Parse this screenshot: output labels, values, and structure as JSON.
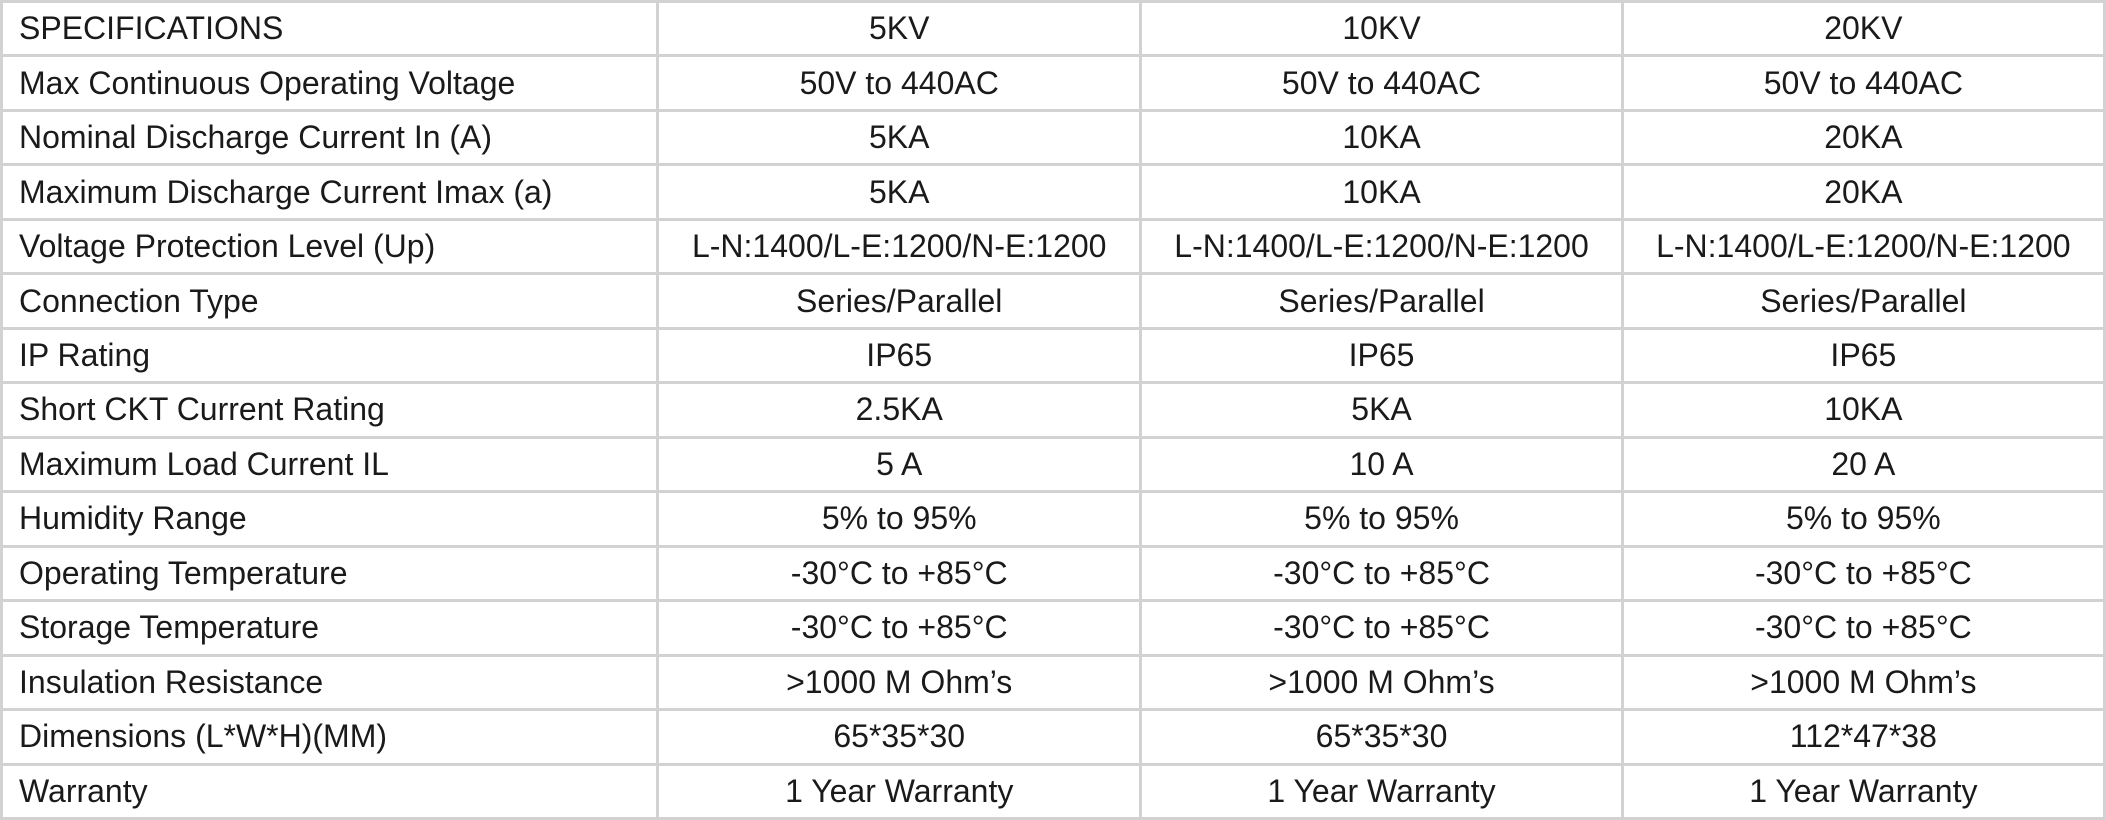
{
  "table": {
    "header": [
      "SPECIFICATIONS",
      "5KV",
      "10KV",
      "20KV"
    ],
    "rows": [
      [
        "Max Continuous Operating Voltage",
        "50V to 440AC",
        "50V to 440AC",
        "50V to 440AC"
      ],
      [
        "Nominal Discharge Current In (A)",
        "5KA",
        "10KA",
        "20KA"
      ],
      [
        "Maximum Discharge Current Imax (a)",
        "5KA",
        "10KA",
        "20KA"
      ],
      [
        "Voltage Protection Level (Up)",
        "L-N:1400/L-E:1200/N-E:1200",
        "L-N:1400/L-E:1200/N-E:1200",
        "L-N:1400/L-E:1200/N-E:1200"
      ],
      [
        "Connection Type",
        "Series/Parallel",
        "Series/Parallel",
        "Series/Parallel"
      ],
      [
        "IP Rating",
        "IP65",
        "IP65",
        "IP65"
      ],
      [
        "Short CKT Current Rating",
        "2.5KA",
        "5KA",
        "10KA"
      ],
      [
        "Maximum Load Current IL",
        "5 A",
        "10 A",
        "20 A"
      ],
      [
        "Humidity Range",
        "5% to 95%",
        "5% to 95%",
        "5% to 95%"
      ],
      [
        "Operating Temperature",
        "-30°C to +85°C",
        "-30°C to +85°C",
        "-30°C to +85°C"
      ],
      [
        "Storage Temperature",
        "-30°C to +85°C",
        "-30°C to +85°C",
        "-30°C to +85°C"
      ],
      [
        "Insulation Resistance",
        ">1000 M Ohm’s",
        ">1000 M Ohm’s",
        ">1000 M Ohm’s"
      ],
      [
        "Dimensions (L*W*H)(MM)",
        "65*35*30",
        "65*35*30",
        "112*47*38"
      ],
      [
        "Warranty",
        "1 Year Warranty",
        "1 Year Warranty",
        "1 Year Warranty"
      ]
    ]
  }
}
